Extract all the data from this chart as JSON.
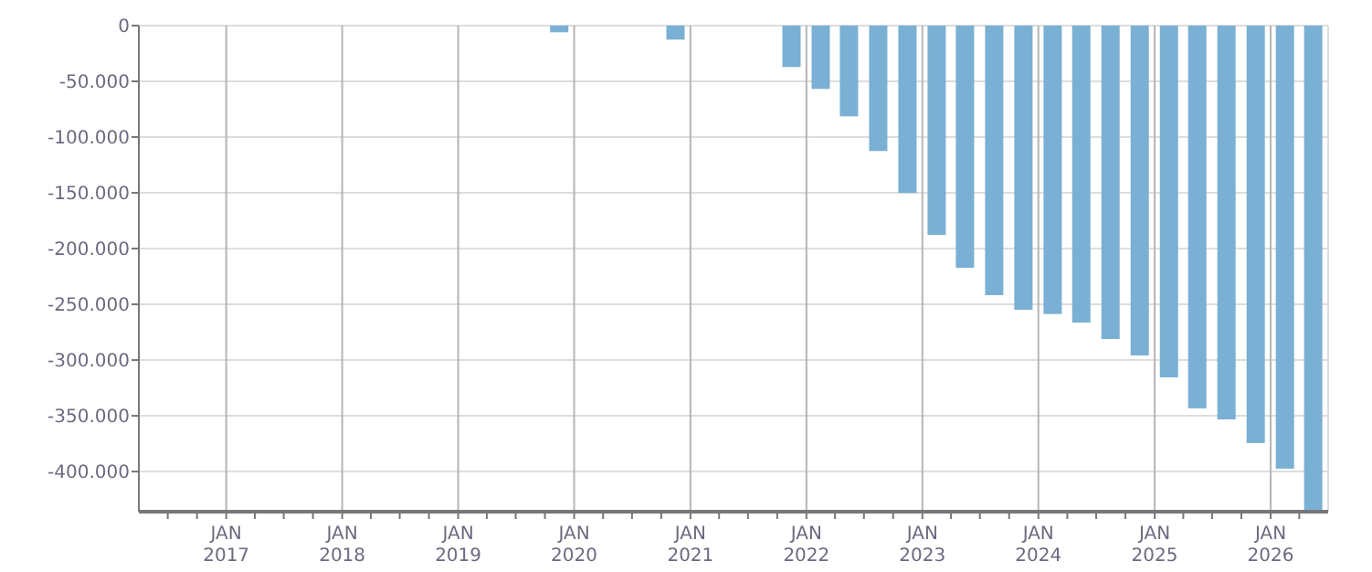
{
  "chart_data": {
    "type": "bar",
    "x": [
      "2019-11-15",
      "2020-11-15",
      "2021-11-15",
      "2022-02-15",
      "2022-05-15",
      "2022-08-15",
      "2022-11-15",
      "2023-02-15",
      "2023-05-15",
      "2023-08-15",
      "2023-11-15",
      "2024-02-15",
      "2024-05-15",
      "2024-08-15",
      "2024-11-15",
      "2025-02-15",
      "2025-05-15",
      "2025-08-15",
      "2025-11-15",
      "2026-02-15",
      "2026-05-15"
    ],
    "values": [
      -6000,
      -12600,
      -37200,
      -56800,
      -81400,
      -112500,
      -150100,
      -187800,
      -217300,
      -241800,
      -254900,
      -258700,
      -266400,
      -281100,
      -295900,
      -315500,
      -343300,
      -353200,
      -374400,
      -397400,
      -435500
    ],
    "color": "#7ab0d3",
    "xlim": [
      "2016-04-01",
      "2026-07-01"
    ],
    "xticks": [
      {
        "value": "2016-07-01",
        "label": null
      },
      {
        "value": "2016-10-01",
        "label": null
      },
      {
        "value": "2017-01-01",
        "label": "JAN 2017"
      },
      {
        "value": "2017-04-01",
        "label": null
      },
      {
        "value": "2017-07-01",
        "label": null
      },
      {
        "value": "2017-10-01",
        "label": null
      },
      {
        "value": "2018-01-01",
        "label": "JAN 2018"
      },
      {
        "value": "2018-04-01",
        "label": null
      },
      {
        "value": "2018-07-01",
        "label": null
      },
      {
        "value": "2018-10-01",
        "label": null
      },
      {
        "value": "2019-01-01",
        "label": "JAN 2019"
      },
      {
        "value": "2019-04-01",
        "label": null
      },
      {
        "value": "2019-07-01",
        "label": null
      },
      {
        "value": "2019-10-01",
        "label": null
      },
      {
        "value": "2020-01-01",
        "label": "JAN 2020"
      },
      {
        "value": "2020-04-01",
        "label": null
      },
      {
        "value": "2020-07-01",
        "label": null
      },
      {
        "value": "2020-10-01",
        "label": null
      },
      {
        "value": "2021-01-01",
        "label": "JAN 2021"
      },
      {
        "value": "2021-04-01",
        "label": null
      },
      {
        "value": "2021-07-01",
        "label": null
      },
      {
        "value": "2021-10-01",
        "label": null
      },
      {
        "value": "2022-01-01",
        "label": "JAN 2022"
      },
      {
        "value": "2022-04-01",
        "label": null
      },
      {
        "value": "2022-07-01",
        "label": null
      },
      {
        "value": "2022-10-01",
        "label": null
      },
      {
        "value": "2023-01-01",
        "label": "JAN 2023"
      },
      {
        "value": "2023-04-01",
        "label": null
      },
      {
        "value": "2023-07-01",
        "label": null
      },
      {
        "value": "2023-10-01",
        "label": null
      },
      {
        "value": "2024-01-01",
        "label": "JAN 2024"
      },
      {
        "value": "2024-04-01",
        "label": null
      },
      {
        "value": "2024-07-01",
        "label": null
      },
      {
        "value": "2024-10-01",
        "label": null
      },
      {
        "value": "2025-01-01",
        "label": "JAN 2025"
      },
      {
        "value": "2025-04-01",
        "label": null
      },
      {
        "value": "2025-07-01",
        "label": null
      },
      {
        "value": "2025-10-01",
        "label": null
      },
      {
        "value": "2026-01-01",
        "label": "JAN 2026"
      },
      {
        "value": "2026-04-01",
        "label": null
      }
    ],
    "ylim": [
      -436000,
      0
    ],
    "yticks": [
      0,
      {
        "value": -50000,
        "label": "-50.000"
      },
      {
        "value": -100000,
        "label": "-100.000"
      },
      {
        "value": -150000,
        "label": "-150.000"
      },
      {
        "value": -200000,
        "label": "-200.000"
      },
      {
        "value": -250000,
        "label": "-250.000"
      },
      {
        "value": -300000,
        "label": "-300.000"
      },
      {
        "value": -350000,
        "label": "-350.000"
      },
      {
        "value": -400000,
        "label": "-400.000"
      }
    ],
    "grid": true
  }
}
